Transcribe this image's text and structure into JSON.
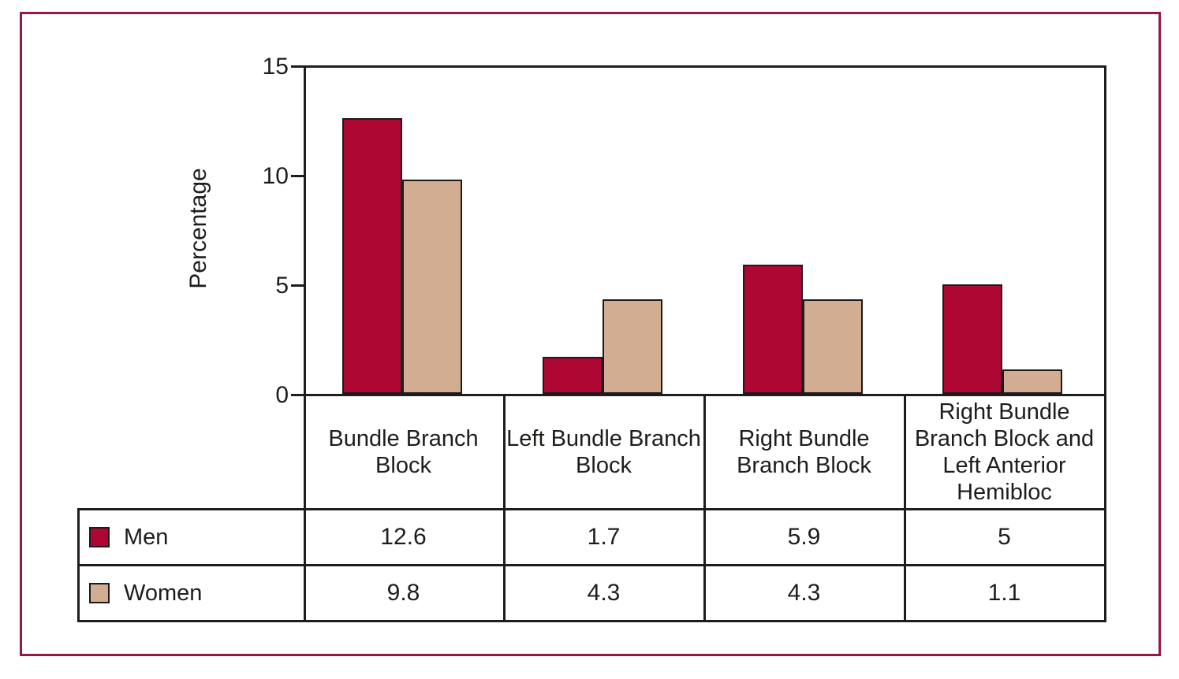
{
  "figure": {
    "border_color": "#981843",
    "axis_color": "#1d1d1b",
    "background": "#ffffff"
  },
  "chart_data": {
    "type": "bar",
    "title": "",
    "categories": [
      "Bundle Branch Block",
      "Left Bundle Branch Block",
      "Right Bundle Branch Block",
      "Right Bundle Branch Block and Left Anterior Hemibloc"
    ],
    "series": [
      {
        "name": "Men",
        "color": "#AF0733",
        "values": [
          12.6,
          1.7,
          5.9,
          5
        ]
      },
      {
        "name": "Women",
        "color": "#D2AD92",
        "values": [
          9.8,
          4.3,
          4.3,
          1.1
        ]
      }
    ],
    "xlabel": "",
    "ylabel": "Percentage",
    "yticks": [
      0,
      5,
      10,
      15
    ],
    "ylim": [
      0,
      15
    ],
    "grid": false,
    "legend_position": "table-bottom-left"
  }
}
